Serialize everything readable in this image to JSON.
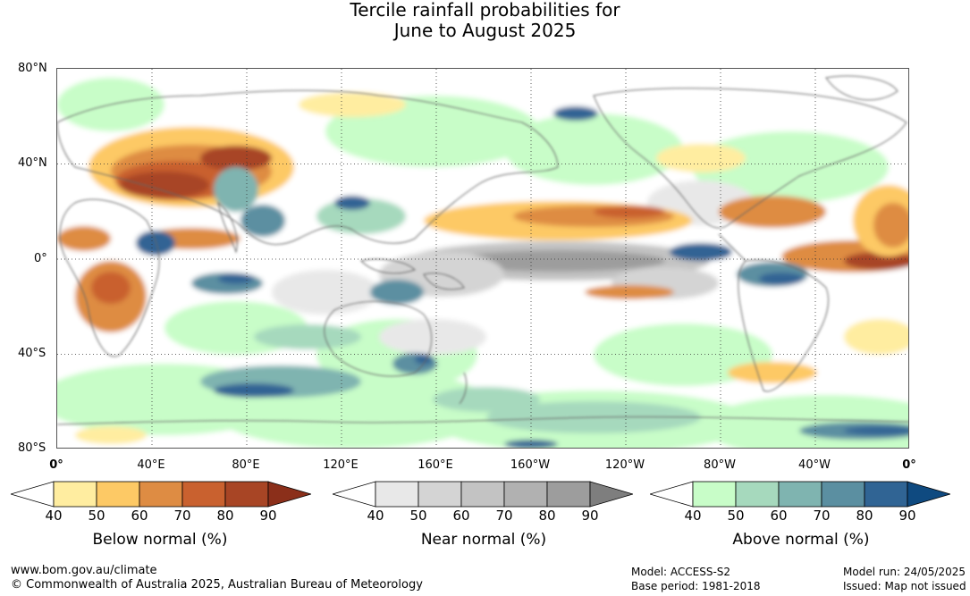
{
  "title": {
    "line1": "Tercile rainfall probabilities for",
    "line2": "June to August 2025"
  },
  "map": {
    "lat_labels": [
      "80°N",
      "40°N",
      "0°",
      "40°S",
      "80°S"
    ],
    "lon_labels": [
      "0°",
      "40°E",
      "80°E",
      "120°E",
      "160°E",
      "160°W",
      "120°W",
      "80°W",
      "40°W",
      "0°"
    ],
    "land_color": "#ffffff",
    "coastline_color": "#666666"
  },
  "legends": {
    "below": {
      "title": "Below normal (%)",
      "ticks": [
        "40",
        "50",
        "60",
        "70",
        "80",
        "90"
      ],
      "colors": [
        "#ffffff",
        "#ffeda0",
        "#fdc965",
        "#de8c43",
        "#c9612f",
        "#a84525",
        "#8b2f1a"
      ]
    },
    "near": {
      "title": "Near normal (%)",
      "ticks": [
        "40",
        "50",
        "60",
        "70",
        "80",
        "90"
      ],
      "colors": [
        "#ffffff",
        "#e8e8e8",
        "#d4d4d4",
        "#c3c3c3",
        "#b1b1b1",
        "#9d9d9d",
        "#7e7e7e"
      ]
    },
    "above": {
      "title": "Above normal (%)",
      "ticks": [
        "40",
        "50",
        "60",
        "70",
        "80",
        "90"
      ],
      "colors": [
        "#ffffff",
        "#c8fdc8",
        "#a6d9bd",
        "#7fb4b0",
        "#5b8fa1",
        "#306494",
        "#0f4a80"
      ]
    }
  },
  "footer": {
    "website": "www.bom.gov.au/climate",
    "copyright": "© Commonwealth of Australia 2025, Australian Bureau of Meteorology",
    "model": "Model: ACCESS-S2",
    "base_period": "Base period: 1981-2018",
    "model_run": "Model run: 24/05/2025",
    "issued": "Issued: Map not issued"
  }
}
